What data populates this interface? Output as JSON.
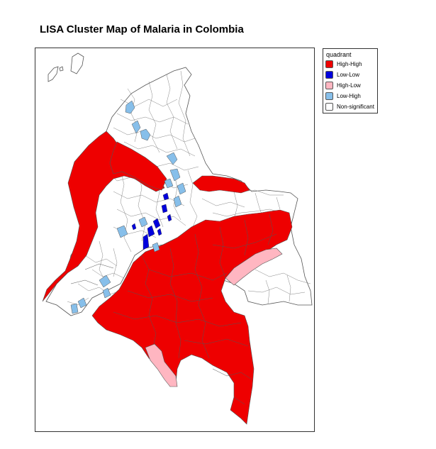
{
  "title": "LISA Cluster Map of Malaria in Colombia",
  "legend": {
    "title": "quadrant",
    "items": [
      {
        "label": "High-High",
        "color": "#ee0000"
      },
      {
        "label": "Low-Low",
        "color": "#0000dd"
      },
      {
        "label": "High-Low",
        "color": "#ffb6c1"
      },
      {
        "label": "Low-High",
        "color": "#87bfea"
      },
      {
        "label": "Non-significant",
        "color": "#ffffff"
      }
    ]
  },
  "colors": {
    "border": "#555555",
    "frame": "#333333"
  }
}
